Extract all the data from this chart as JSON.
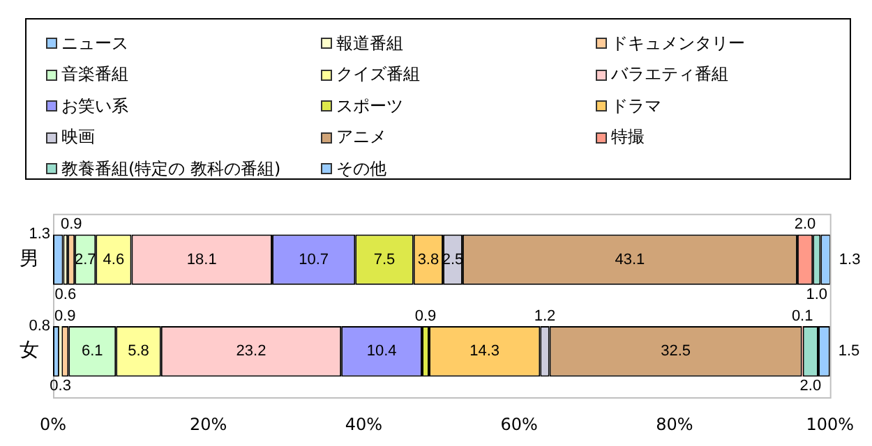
{
  "chart_data": {
    "type": "bar",
    "orientation": "horizontal",
    "stacked": true,
    "legend": "top",
    "grid": false,
    "categories": [
      "男",
      "女"
    ],
    "xlim": [
      0,
      100
    ],
    "xticks": [
      {
        "value": 0,
        "label": "0%"
      },
      {
        "value": 20,
        "label": "20%"
      },
      {
        "value": 40,
        "label": "40%"
      },
      {
        "value": 60,
        "label": "60%"
      },
      {
        "value": 80,
        "label": "80%"
      },
      {
        "value": 100,
        "label": "100%"
      }
    ],
    "series": [
      {
        "name": "ニュース",
        "color": "#99ccff",
        "values": [
          1.3,
          0.8
        ],
        "value_labels": [
          "1.3",
          "0.8"
        ]
      },
      {
        "name": "報道番組",
        "color": "#ffffcc",
        "values": [
          0.6,
          0.3
        ],
        "value_labels": [
          "0.6",
          "0.3"
        ]
      },
      {
        "name": "ドキュメンタリー",
        "color": "#ffcc99",
        "values": [
          0.9,
          0.9
        ],
        "value_labels": [
          "0.9",
          "0.9"
        ]
      },
      {
        "name": "音楽番組",
        "color": "#ccffcc",
        "values": [
          2.7,
          6.1
        ],
        "value_labels": [
          "2.7",
          "6.1"
        ]
      },
      {
        "name": "クイズ番組",
        "color": "#ffff99",
        "values": [
          4.6,
          5.8
        ],
        "value_labels": [
          "4.6",
          "5.8"
        ]
      },
      {
        "name": "バラエティ番組",
        "color": "#ffcccc",
        "values": [
          18.1,
          23.2
        ],
        "value_labels": [
          "18.1",
          "23.2"
        ]
      },
      {
        "name": "お笑い系",
        "color": "#9999ff",
        "values": [
          10.7,
          10.4
        ],
        "value_labels": [
          "10.7",
          "10.4"
        ]
      },
      {
        "name": "スポーツ",
        "color": "#dde84a",
        "values": [
          7.5,
          0.9
        ],
        "value_labels": [
          "7.5",
          "0.9"
        ]
      },
      {
        "name": "ドラマ",
        "color": "#ffcc66",
        "values": [
          3.8,
          14.3
        ],
        "value_labels": [
          "3.8",
          "14.3"
        ]
      },
      {
        "name": "映画",
        "color": "#ccccdd",
        "values": [
          2.5,
          1.2
        ],
        "value_labels": [
          "2.5",
          "1.2"
        ]
      },
      {
        "name": "アニメ",
        "color": "#d0a478",
        "values": [
          43.1,
          32.5
        ],
        "value_labels": [
          "43.1",
          "32.5"
        ]
      },
      {
        "name": "特撮",
        "color": "#ff9988",
        "values": [
          2.0,
          0.1
        ],
        "value_labels": [
          "2.0",
          "0.1"
        ]
      },
      {
        "name": "教養番組(特定の 教科の番組)",
        "color": "#99ddcc",
        "values": [
          1.0,
          2.0
        ],
        "value_labels": [
          "1.0",
          "2.0"
        ]
      },
      {
        "name": "その他",
        "color": "#99ccff",
        "values": [
          1.3,
          1.5
        ],
        "value_labels": [
          "1.3",
          "1.5"
        ]
      }
    ]
  }
}
